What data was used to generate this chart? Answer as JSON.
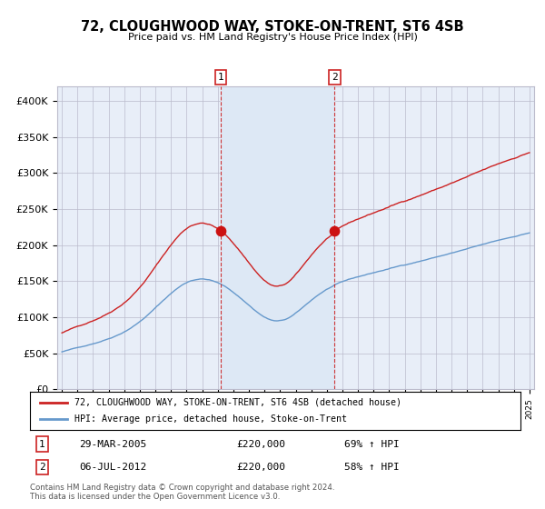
{
  "title": "72, CLOUGHWOOD WAY, STOKE-ON-TRENT, ST6 4SB",
  "subtitle": "Price paid vs. HM Land Registry's House Price Index (HPI)",
  "sale1_label": "29-MAR-2005",
  "sale1_price": 220000,
  "sale1_hpi_pct": "69% ↑ HPI",
  "sale2_label": "06-JUL-2012",
  "sale2_price": 220000,
  "sale2_hpi_pct": "58% ↑ HPI",
  "legend_line1": "72, CLOUGHWOOD WAY, STOKE-ON-TRENT, ST6 4SB (detached house)",
  "legend_line2": "HPI: Average price, detached house, Stoke-on-Trent",
  "footer": "Contains HM Land Registry data © Crown copyright and database right 2024.\nThis data is licensed under the Open Government Licence v3.0.",
  "hpi_color": "#6699cc",
  "price_color": "#cc2222",
  "sale_dot_color": "#cc1111",
  "background_color": "#e8eef8",
  "grid_color": "#bbbbcc",
  "span_color": "#dde8f5",
  "ylim": [
    0,
    420000
  ],
  "yticks": [
    0,
    50000,
    100000,
    150000,
    200000,
    250000,
    300000,
    350000,
    400000
  ],
  "x_start_year": 1995,
  "x_end_year": 2025,
  "sale1_year": 2005.21,
  "sale2_year": 2012.5
}
